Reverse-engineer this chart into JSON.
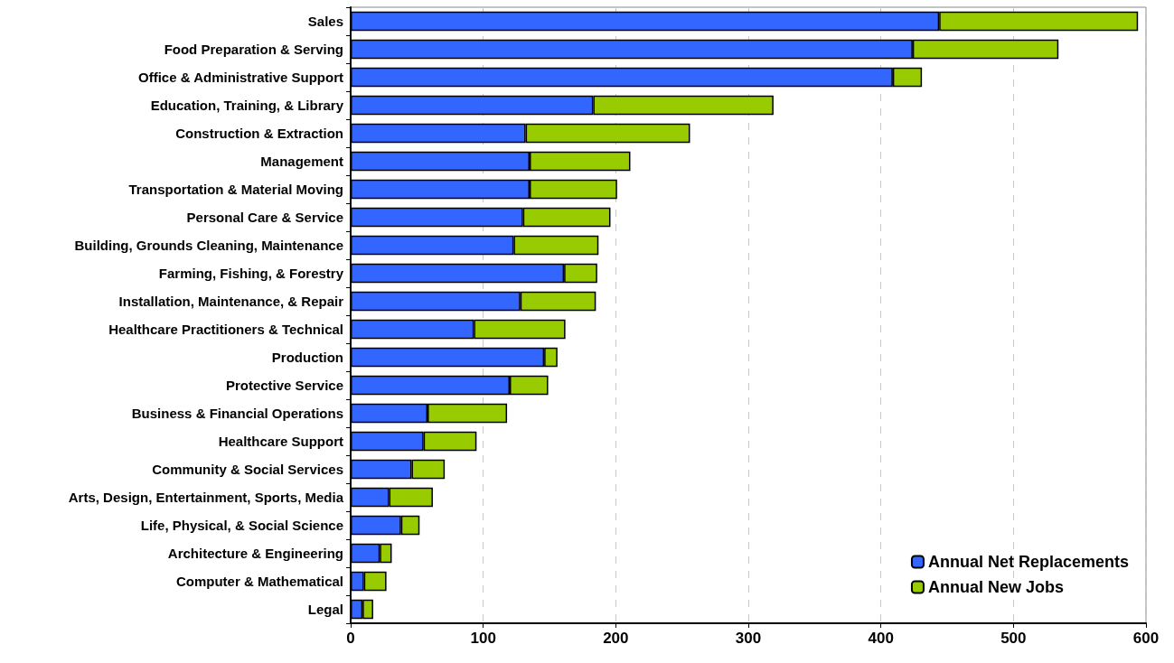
{
  "chart_data": {
    "type": "bar",
    "orientation": "horizontal",
    "stacked": true,
    "categories": [
      "Sales",
      "Food Preparation & Serving",
      "Office & Administrative Support",
      "Education, Training, & Library",
      "Construction & Extraction",
      "Management",
      "Transportation & Material Moving",
      "Personal Care & Service",
      "Building, Grounds Cleaning, Maintenance",
      "Farming, Fishing, & Forestry",
      "Installation, Maintenance, & Repair",
      "Healthcare Practitioners & Technical",
      "Production",
      "Protective Service",
      "Business & Financial Operations",
      "Healthcare Support",
      "Community & Social Services",
      "Arts, Design, Entertainment, Sports, Media",
      "Life, Physical, & Social Science",
      "Architecture & Engineering",
      "Computer & Mathematical",
      "Legal"
    ],
    "series": [
      {
        "name": "Annual Net Replacements",
        "color": "#3366ff",
        "values": [
          444,
          424,
          409,
          183,
          132,
          135,
          135,
          130,
          123,
          161,
          128,
          93,
          146,
          120,
          58,
          55,
          46,
          29,
          38,
          22,
          10,
          9
        ]
      },
      {
        "name": "Annual New Jobs",
        "color": "#99cc00",
        "values": [
          150,
          110,
          22,
          136,
          124,
          76,
          66,
          66,
          64,
          25,
          57,
          69,
          10,
          29,
          60,
          40,
          25,
          33,
          14,
          9,
          17,
          8
        ]
      }
    ],
    "xlim": [
      0,
      600
    ],
    "xticks": [
      0,
      100,
      200,
      300,
      400,
      500,
      600
    ],
    "grid": "x",
    "legend": "bottom right"
  }
}
